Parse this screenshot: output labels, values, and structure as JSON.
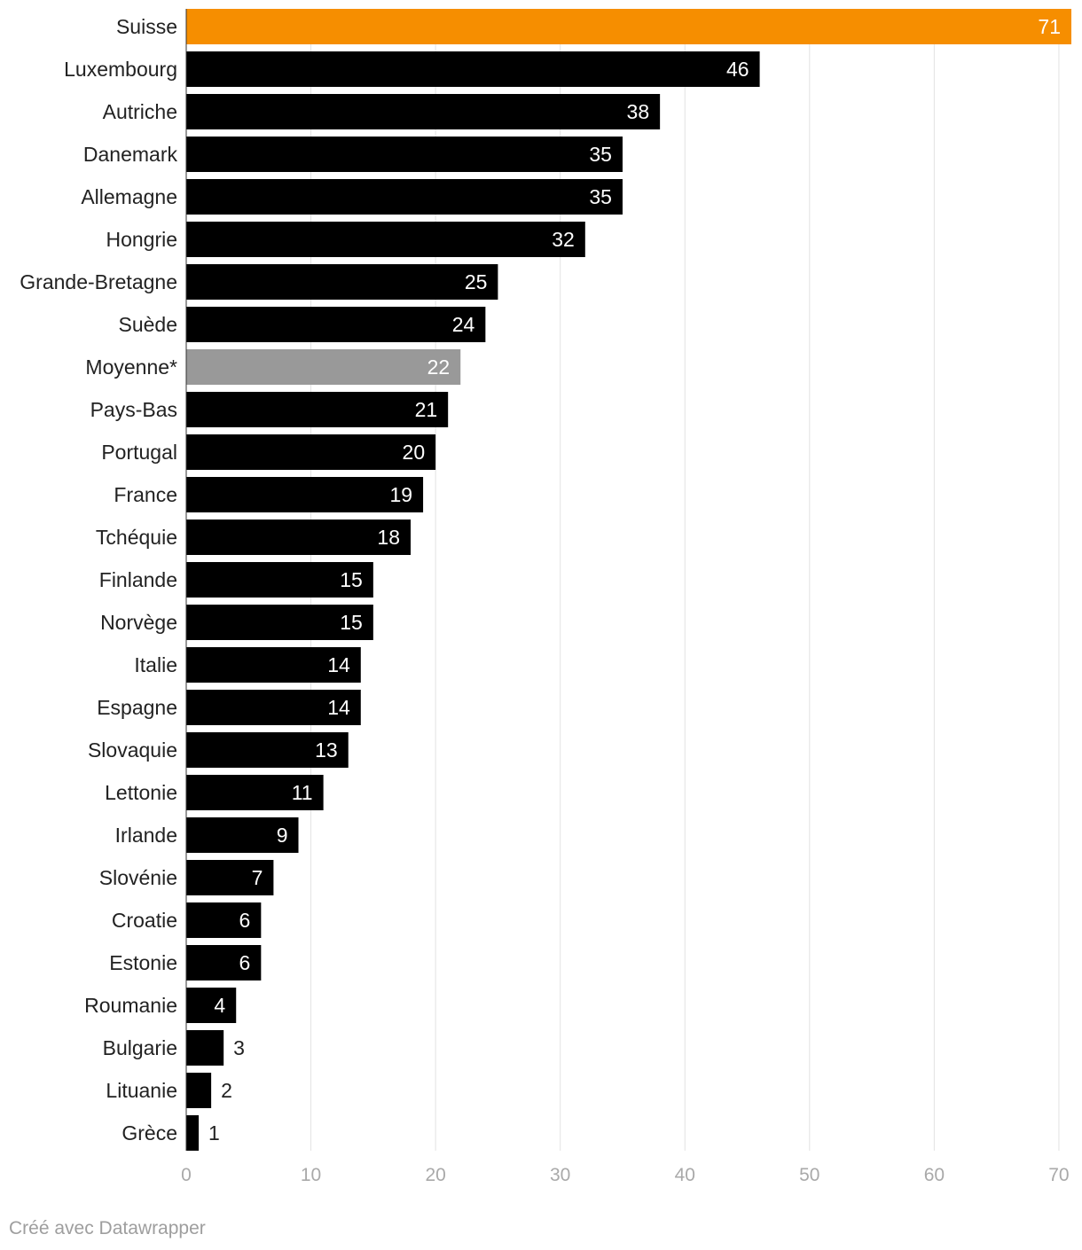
{
  "chart_data": {
    "type": "bar",
    "orientation": "horizontal",
    "categories": [
      "Suisse",
      "Luxembourg",
      "Autriche",
      "Danemark",
      "Allemagne",
      "Hongrie",
      "Grande-Bretagne",
      "Suède",
      "Moyenne*",
      "Pays-Bas",
      "Portugal",
      "France",
      "Tchéquie",
      "Finlande",
      "Norvège",
      "Italie",
      "Espagne",
      "Slovaquie",
      "Lettonie",
      "Irlande",
      "Slovénie",
      "Croatie",
      "Estonie",
      "Roumanie",
      "Bulgarie",
      "Lituanie",
      "Grèce"
    ],
    "values": [
      71,
      46,
      38,
      35,
      35,
      32,
      25,
      24,
      22,
      21,
      20,
      19,
      18,
      15,
      15,
      14,
      14,
      13,
      11,
      9,
      7,
      6,
      6,
      4,
      3,
      2,
      1
    ],
    "highlight": {
      "Suisse": "#f68e00",
      "Moyenne*": "#999999"
    },
    "default_color": "#000000",
    "xlim": [
      0,
      71
    ],
    "xticks": [
      0,
      10,
      20,
      30,
      40,
      50,
      60,
      70
    ],
    "grid": true,
    "title": "",
    "xlabel": "",
    "ylabel": ""
  },
  "footer": {
    "credit": "Créé avec Datawrapper"
  }
}
